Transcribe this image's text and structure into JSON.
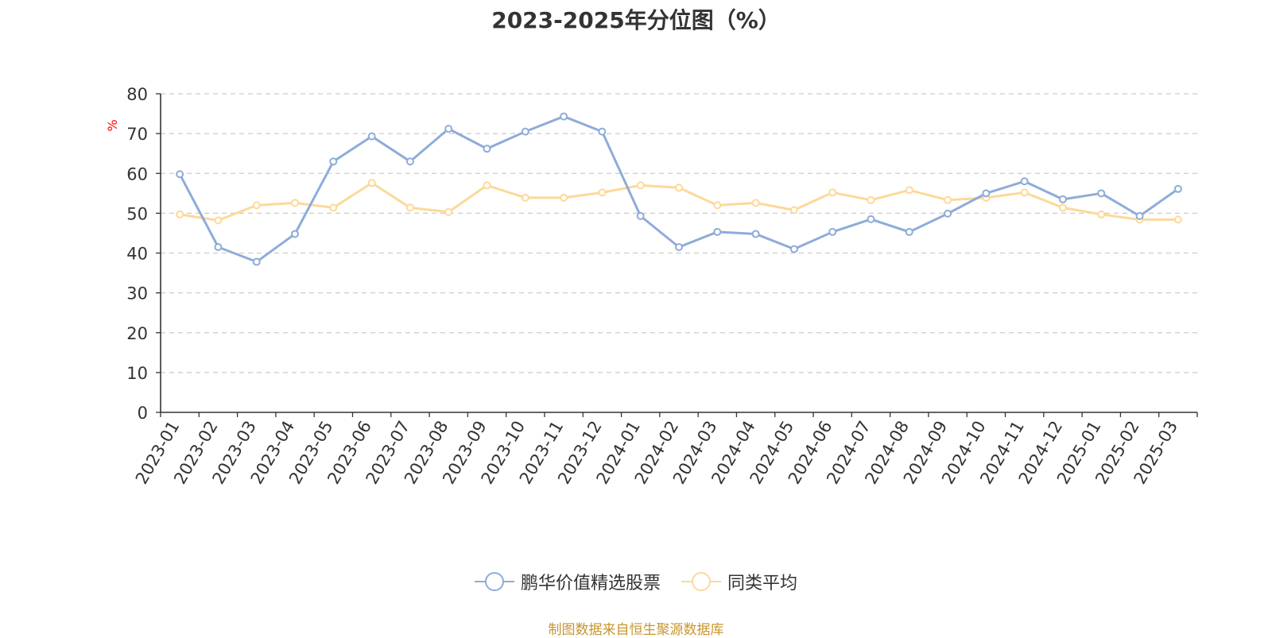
{
  "colors": {
    "series1": "#8eacd9",
    "series2": "#fcd999",
    "axis": "#333333",
    "grid": "#cccccc",
    "unit": "#ff0000",
    "source": "#c8962e"
  },
  "chart_data": {
    "type": "line",
    "title": "2023-2025年分位图（%）",
    "ylabel": "%",
    "xlabel": "",
    "ylim": [
      0,
      80
    ],
    "yticks": [
      0,
      10,
      20,
      30,
      40,
      50,
      60,
      70,
      80
    ],
    "grid": true,
    "legend_position": "bottom-center",
    "categories": [
      "2023-01",
      "2023-02",
      "2023-03",
      "2023-04",
      "2023-05",
      "2023-06",
      "2023-07",
      "2023-08",
      "2023-09",
      "2023-10",
      "2023-11",
      "2023-12",
      "2024-01",
      "2024-02",
      "2024-03",
      "2024-04",
      "2024-05",
      "2024-06",
      "2024-07",
      "2024-08",
      "2024-09",
      "2024-10",
      "2024-11",
      "2024-12",
      "2025-01",
      "2025-02",
      "2025-03"
    ],
    "series": [
      {
        "name": "鹏华价值精选股票",
        "values": [
          59.8,
          41.5,
          37.8,
          44.8,
          63.0,
          69.3,
          63.0,
          71.2,
          66.2,
          70.5,
          74.3,
          70.5,
          49.3,
          41.5,
          45.3,
          44.8,
          41.0,
          45.3,
          48.5,
          45.3,
          49.9,
          55.0,
          58.0,
          53.5,
          55.0,
          49.3,
          56.1
        ]
      },
      {
        "name": "同类平均",
        "values": [
          49.7,
          48.2,
          52.0,
          52.6,
          51.4,
          57.6,
          51.4,
          50.3,
          57.0,
          53.9,
          53.9,
          55.2,
          57.0,
          56.4,
          52.0,
          52.6,
          50.8,
          55.2,
          53.3,
          55.8,
          53.3,
          53.9,
          55.2,
          51.4,
          49.7,
          48.4,
          48.4
        ]
      }
    ]
  },
  "source_note": "制图数据来自恒生聚源数据库"
}
